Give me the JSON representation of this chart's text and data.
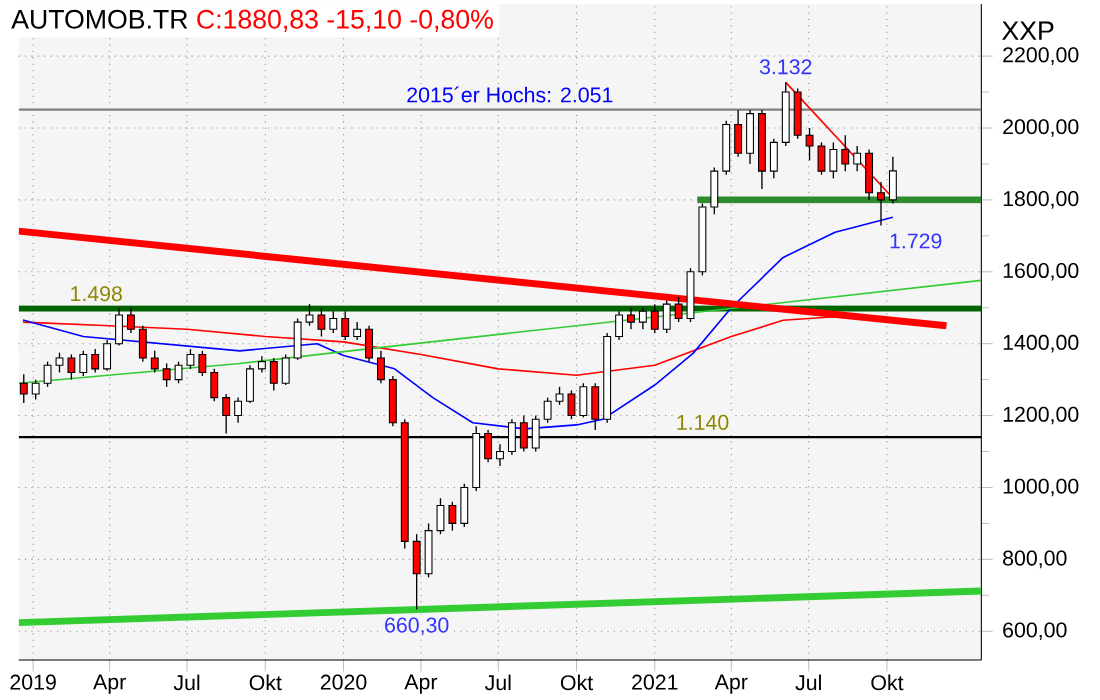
{
  "chart_data": {
    "type": "candlestick",
    "title": "AUTOMOB.TR",
    "subtitle": "C:1880,83 -15,10 -0,80%",
    "ylabel": "XXP",
    "xlim": [
      "2018-12-15",
      "2022-01-20"
    ],
    "ylim": [
      520,
      2345
    ],
    "xticks": [
      {
        "value": "2019-01-01",
        "label": "2019"
      },
      {
        "value": "2019-04-01",
        "label": "Apr"
      },
      {
        "value": "2019-07-01",
        "label": "Jul"
      },
      {
        "value": "2019-10-01",
        "label": "Okt"
      },
      {
        "value": "2020-01-01",
        "label": "2020"
      },
      {
        "value": "2020-04-01",
        "label": "Apr"
      },
      {
        "value": "2020-07-01",
        "label": "Jul"
      },
      {
        "value": "2020-10-01",
        "label": "Okt"
      },
      {
        "value": "2021-01-01",
        "label": "2021"
      },
      {
        "value": "2021-04-01",
        "label": "Apr"
      },
      {
        "value": "2021-07-01",
        "label": "Jul"
      },
      {
        "value": "2021-10-01",
        "label": "Okt"
      }
    ],
    "yticks": [
      {
        "value": 600,
        "label": "600,00"
      },
      {
        "value": 800,
        "label": "800,00"
      },
      {
        "value": 1000,
        "label": "1000,00"
      },
      {
        "value": 1200,
        "label": "1200,00"
      },
      {
        "value": 1400,
        "label": "1400,00"
      },
      {
        "value": 1600,
        "label": "1600,00"
      },
      {
        "value": 1800,
        "label": "1800,00"
      },
      {
        "value": 2000,
        "label": "2000,00"
      },
      {
        "value": 2200,
        "label": "2200,00"
      }
    ],
    "grid": true,
    "series": [
      {
        "type": "line",
        "color": "#ff0000",
        "x": [
          "2018-12-20",
          "2019-04-01",
          "2019-07-01",
          "2019-10-01",
          "2020-01-01",
          "2020-04-01",
          "2020-07-01",
          "2020-10-01",
          "2021-01-01",
          "2021-04-01",
          "2021-06-01",
          "2021-08-01",
          "2021-10-08"
        ],
        "values": [
          1460,
          1450,
          1440,
          1420,
          1405,
          1370,
          1330,
          1312,
          1340,
          1420,
          1465,
          1475,
          1465
        ]
      },
      {
        "type": "line",
        "color": "#0000ff",
        "x": [
          "2018-12-20",
          "2019-03-01",
          "2019-06-01",
          "2019-09-01",
          "2019-12-01",
          "2020-01-01",
          "2020-03-01",
          "2020-04-15",
          "2020-06-01",
          "2020-08-01",
          "2020-10-01",
          "2020-11-01",
          "2021-01-01",
          "2021-02-15",
          "2021-04-01",
          "2021-06-01",
          "2021-08-01",
          "2021-10-08"
        ],
        "values": [
          1466,
          1420,
          1400,
          1380,
          1400,
          1367,
          1330,
          1250,
          1180,
          1163,
          1174,
          1190,
          1285,
          1373,
          1500,
          1640,
          1710,
          1752
        ]
      },
      {
        "type": "line",
        "color": "#33cc33",
        "x": [
          "2018-12-15",
          "2019-09-01",
          "2020-01-01",
          "2020-10-01",
          "2022-01-20"
        ],
        "values": [
          1290,
          1345,
          1378,
          1450,
          1576
        ]
      },
      {
        "type": "line",
        "color": "#ff0000",
        "x": [
          "2018-12-15",
          "2021-12-10"
        ],
        "values": [
          1713,
          1450
        ]
      },
      {
        "type": "line",
        "color": "#33cc33",
        "x": [
          "2018-12-15",
          "2022-01-20"
        ],
        "values": [
          624,
          712
        ]
      },
      {
        "type": "line",
        "color": "#2e8b2e",
        "x": [
          "2021-02-20",
          "2022-01-20"
        ],
        "values": [
          1800,
          1800
        ]
      },
      {
        "type": "line",
        "color": "#ff0000",
        "x": [
          "2021-06-04",
          "2021-10-05"
        ],
        "values": [
          2127,
          1813
        ]
      },
      {
        "colors": [
          "#ff0000",
          "#ffffff",
          "#ffffff",
          "#ffffff",
          "#ff0000",
          "#ffffff",
          "#ff0000",
          "#ffffff",
          "#ffffff",
          "#ff0000",
          "#ff0000",
          "#ff0000",
          "#ff0000",
          "#ffffff",
          "#ffffff",
          "#ff0000",
          "#ff0000",
          "#ff0000",
          "#ffffff",
          "#ffffff",
          "#ffffff",
          "#ff0000",
          "#ffffff",
          "#ffffff",
          "#ffffff",
          "#ff0000",
          "#ffffff",
          "#ff0000",
          "#ffffff",
          "#ff0000",
          "#ff0000",
          "#ff0000",
          "#ff0000",
          "#ff0000",
          "#ffffff",
          "#ffffff",
          "#ff0000",
          "#ffffff",
          "#ffffff",
          "#ff0000",
          "#ffffff",
          "#ffffff",
          "#ff0000",
          "#ffffff",
          "#ffffff",
          "#ffffff",
          "#ff0000",
          "#ffffff",
          "#ff0000",
          "#ffffff",
          "#ffffff",
          "#ff0000",
          "#ffffff",
          "#ff0000",
          "#ffffff",
          "#ff0000",
          "#ffffff",
          "#ffffff",
          "#ffffff",
          "#ffffff",
          "#ff0000",
          "#ffffff",
          "#ff0000",
          "#ffffff",
          "#ffffff",
          "#ff0000",
          "#ff0000",
          "#ff0000",
          "#ffffff",
          "#ff0000",
          "#ffffff",
          "#ff0000",
          "#ff0000",
          "#ffffff"
        ],
        "x": [
          "2018-12-21",
          "2019-01-04",
          "2019-01-18",
          "2019-02-01",
          "2019-02-15",
          "2019-03-01",
          "2019-03-15",
          "2019-03-29",
          "2019-04-12",
          "2019-04-26",
          "2019-05-10",
          "2019-05-24",
          "2019-06-07",
          "2019-06-21",
          "2019-07-05",
          "2019-07-19",
          "2019-08-02",
          "2019-08-16",
          "2019-08-30",
          "2019-09-13",
          "2019-09-27",
          "2019-10-11",
          "2019-10-25",
          "2019-11-08",
          "2019-11-22",
          "2019-12-06",
          "2019-12-20",
          "2020-01-03",
          "2020-01-17",
          "2020-01-31",
          "2020-02-14",
          "2020-02-28",
          "2020-03-13",
          "2020-03-27",
          "2020-04-10",
          "2020-04-24",
          "2020-05-08",
          "2020-05-22",
          "2020-06-05",
          "2020-06-19",
          "2020-07-03",
          "2020-07-17",
          "2020-07-31",
          "2020-08-14",
          "2020-08-28",
          "2020-09-11",
          "2020-09-25",
          "2020-10-09",
          "2020-10-23",
          "2020-11-06",
          "2020-11-20",
          "2020-12-04",
          "2020-12-18",
          "2021-01-01",
          "2021-01-15",
          "2021-01-29",
          "2021-02-12",
          "2021-02-26",
          "2021-03-12",
          "2021-03-26",
          "2021-04-09",
          "2021-04-23",
          "2021-05-07",
          "2021-05-21",
          "2021-06-04",
          "2021-06-18",
          "2021-07-02",
          "2021-07-16",
          "2021-07-30",
          "2021-08-13",
          "2021-08-27",
          "2021-09-10",
          "2021-09-24",
          "2021-10-08"
        ],
        "ohlc": [
          [
            1290,
            1315,
            1235,
            1260
          ],
          [
            1260,
            1300,
            1245,
            1290
          ],
          [
            1290,
            1350,
            1280,
            1340
          ],
          [
            1340,
            1375,
            1320,
            1360
          ],
          [
            1360,
            1370,
            1300,
            1320
          ],
          [
            1320,
            1380,
            1310,
            1370
          ],
          [
            1370,
            1385,
            1320,
            1330
          ],
          [
            1330,
            1410,
            1325,
            1400
          ],
          [
            1400,
            1500,
            1395,
            1480
          ],
          [
            1480,
            1500,
            1430,
            1440
          ],
          [
            1440,
            1450,
            1350,
            1360
          ],
          [
            1360,
            1380,
            1320,
            1330
          ],
          [
            1330,
            1345,
            1280,
            1300
          ],
          [
            1300,
            1350,
            1290,
            1340
          ],
          [
            1340,
            1385,
            1330,
            1370
          ],
          [
            1370,
            1380,
            1310,
            1320
          ],
          [
            1320,
            1330,
            1240,
            1250
          ],
          [
            1250,
            1260,
            1150,
            1200
          ],
          [
            1200,
            1250,
            1180,
            1240
          ],
          [
            1240,
            1340,
            1235,
            1330
          ],
          [
            1330,
            1365,
            1320,
            1350
          ],
          [
            1350,
            1360,
            1270,
            1290
          ],
          [
            1290,
            1370,
            1285,
            1360
          ],
          [
            1360,
            1470,
            1355,
            1460
          ],
          [
            1460,
            1510,
            1450,
            1480
          ],
          [
            1480,
            1500,
            1420,
            1440
          ],
          [
            1440,
            1490,
            1430,
            1470
          ],
          [
            1470,
            1490,
            1410,
            1420
          ],
          [
            1420,
            1460,
            1410,
            1440
          ],
          [
            1440,
            1450,
            1350,
            1360
          ],
          [
            1360,
            1380,
            1290,
            1300
          ],
          [
            1300,
            1310,
            1170,
            1180
          ],
          [
            1180,
            1190,
            830,
            850
          ],
          [
            850,
            870,
            660.3,
            760
          ],
          [
            760,
            900,
            750,
            880
          ],
          [
            880,
            970,
            870,
            950
          ],
          [
            950,
            960,
            880,
            900
          ],
          [
            900,
            1010,
            890,
            1000
          ],
          [
            1000,
            1170,
            990,
            1150
          ],
          [
            1150,
            1160,
            1070,
            1080
          ],
          [
            1080,
            1120,
            1060,
            1100
          ],
          [
            1100,
            1190,
            1090,
            1180
          ],
          [
            1180,
            1200,
            1100,
            1110
          ],
          [
            1110,
            1200,
            1100,
            1190
          ],
          [
            1190,
            1250,
            1180,
            1240
          ],
          [
            1240,
            1280,
            1230,
            1260
          ],
          [
            1260,
            1270,
            1190,
            1200
          ],
          [
            1200,
            1290,
            1195,
            1280
          ],
          [
            1280,
            1290,
            1160,
            1190
          ],
          [
            1190,
            1430,
            1180,
            1420
          ],
          [
            1420,
            1490,
            1410,
            1480
          ],
          [
            1480,
            1500,
            1440,
            1460
          ],
          [
            1460,
            1500,
            1440,
            1490
          ],
          [
            1490,
            1510,
            1430,
            1440
          ],
          [
            1440,
            1520,
            1430,
            1510
          ],
          [
            1510,
            1530,
            1460,
            1470
          ],
          [
            1470,
            1610,
            1460,
            1600
          ],
          [
            1600,
            1790,
            1590,
            1780
          ],
          [
            1780,
            1890,
            1760,
            1880
          ],
          [
            1880,
            2020,
            1870,
            2010
          ],
          [
            2010,
            2050,
            1920,
            1930
          ],
          [
            1930,
            2050,
            1900,
            2040
          ],
          [
            2040,
            2050,
            1830,
            1880
          ],
          [
            1880,
            1970,
            1860,
            1960
          ],
          [
            1960,
            2127,
            1950,
            2100
          ],
          [
            2100,
            2110,
            1970,
            1980
          ],
          [
            1980,
            2000,
            1910,
            1950
          ],
          [
            1950,
            1960,
            1870,
            1880
          ],
          [
            1880,
            1960,
            1860,
            1940
          ],
          [
            1940,
            1980,
            1880,
            1900
          ],
          [
            1900,
            1950,
            1880,
            1930
          ],
          [
            1930,
            1940,
            1800,
            1820
          ],
          [
            1820,
            1850,
            1729,
            1800
          ],
          [
            1800,
            1920,
            1790,
            1880.83
          ]
        ]
      }
    ],
    "ref_lines": [
      {
        "axis": "y",
        "value": 2051,
        "label": "2015´er Hochs: 2.051",
        "color": "#808080"
      },
      {
        "axis": "y",
        "value": 1498,
        "label": "1.498",
        "color": "#006400"
      },
      {
        "axis": "y",
        "value": 1140,
        "label": "1.140",
        "color": "#000000"
      }
    ],
    "annotations": [
      {
        "text": "3.132",
        "x": "2021-06-04",
        "y": 2127
      },
      {
        "text": "1.729",
        "x": "2021-09-24",
        "y": 1729
      },
      {
        "text": "660,30",
        "x": "2020-03-27",
        "y": 660.3
      }
    ]
  }
}
